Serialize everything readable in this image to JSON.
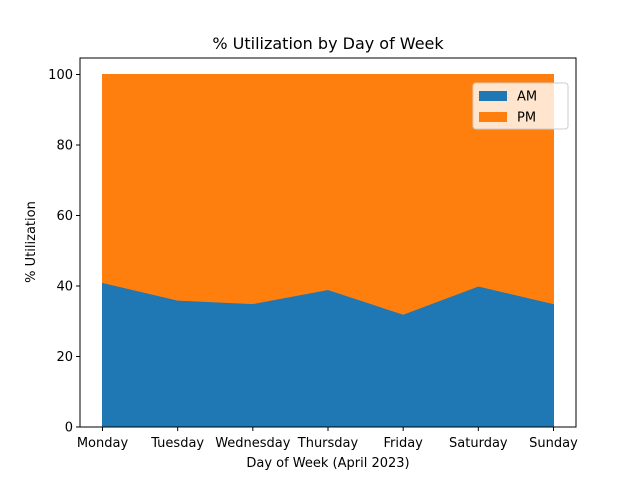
{
  "chart_data": {
    "type": "area",
    "stacked": true,
    "title": "% Utilization by Day of Week",
    "xlabel": "Day of Week (April 2023)",
    "ylabel": "% Utilization",
    "categories": [
      "Monday",
      "Tuesday",
      "Wednesday",
      "Thursday",
      "Friday",
      "Saturday",
      "Sunday"
    ],
    "ylim": [
      0,
      100
    ],
    "yticks": [
      "0",
      "20",
      "40",
      "60",
      "80",
      "100"
    ],
    "series": [
      {
        "name": "AM",
        "color": "#1f77b4",
        "values": [
          41,
          36,
          35,
          39,
          32,
          40,
          35
        ]
      },
      {
        "name": "PM",
        "color": "#ff7f0e",
        "values": [
          59,
          64,
          65,
          61,
          68,
          60,
          65
        ]
      }
    ],
    "legend": "top-right",
    "grid": false
  }
}
